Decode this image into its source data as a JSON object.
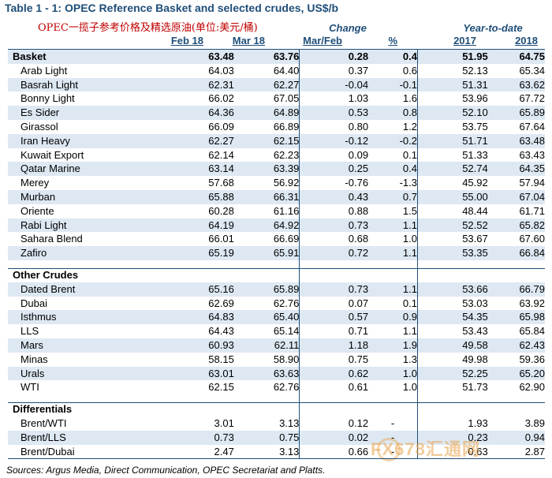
{
  "title": "Table 1 - 1: OPEC Reference Basket and selected crudes, US$/b",
  "subtitle": "OPEC一揽子参考价格及精选原油(单位:美元/桶)",
  "headers": {
    "change": "Change",
    "ytd": "Year-to-date",
    "feb": "Feb 18",
    "mar": "Mar 18",
    "marfeb": "Mar/Feb",
    "pct": "%",
    "y2017": "2017",
    "y2018": "2018"
  },
  "basket": {
    "label": "Basket",
    "values": [
      "63.48",
      "63.76",
      "0.28",
      "0.4",
      "51.95",
      "64.75"
    ]
  },
  "basket_rows": [
    {
      "name": "Arab Light",
      "values": [
        "64.03",
        "64.40",
        "0.37",
        "0.6",
        "52.13",
        "65.34"
      ]
    },
    {
      "name": "Basrah Light",
      "values": [
        "62.31",
        "62.27",
        "-0.04",
        "-0.1",
        "51.31",
        "63.62"
      ]
    },
    {
      "name": "Bonny Light",
      "values": [
        "66.02",
        "67.05",
        "1.03",
        "1.6",
        "53.96",
        "67.72"
      ]
    },
    {
      "name": "Es Sider",
      "values": [
        "64.36",
        "64.89",
        "0.53",
        "0.8",
        "52.10",
        "65.89"
      ]
    },
    {
      "name": "Girassol",
      "values": [
        "66.09",
        "66.89",
        "0.80",
        "1.2",
        "53.75",
        "67.64"
      ]
    },
    {
      "name": "Iran Heavy",
      "values": [
        "62.27",
        "62.15",
        "-0.12",
        "-0.2",
        "51.71",
        "63.48"
      ]
    },
    {
      "name": "Kuwait Export",
      "values": [
        "62.14",
        "62.23",
        "0.09",
        "0.1",
        "51.33",
        "63.43"
      ]
    },
    {
      "name": "Qatar Marine",
      "values": [
        "63.14",
        "63.39",
        "0.25",
        "0.4",
        "52.74",
        "64.35"
      ]
    },
    {
      "name": "Merey",
      "values": [
        "57.68",
        "56.92",
        "-0.76",
        "-1.3",
        "45.92",
        "57.94"
      ]
    },
    {
      "name": "Murban",
      "values": [
        "65.88",
        "66.31",
        "0.43",
        "0.7",
        "55.00",
        "67.04"
      ]
    },
    {
      "name": "Oriente",
      "values": [
        "60.28",
        "61.16",
        "0.88",
        "1.5",
        "48.44",
        "61.71"
      ]
    },
    {
      "name": "Rabi Light",
      "values": [
        "64.19",
        "64.92",
        "0.73",
        "1.1",
        "52.52",
        "65.82"
      ]
    },
    {
      "name": "Sahara Blend",
      "values": [
        "66.01",
        "66.69",
        "0.68",
        "1.0",
        "53.67",
        "67.60"
      ]
    },
    {
      "name": "Zafiro",
      "values": [
        "65.19",
        "65.91",
        "0.72",
        "1.1",
        "53.35",
        "66.84"
      ]
    }
  ],
  "other_label": "Other Crudes",
  "other_rows": [
    {
      "name": "Dated Brent",
      "values": [
        "65.16",
        "65.89",
        "0.73",
        "1.1",
        "53.66",
        "66.79"
      ]
    },
    {
      "name": "Dubai",
      "values": [
        "62.69",
        "62.76",
        "0.07",
        "0.1",
        "53.03",
        "63.92"
      ]
    },
    {
      "name": "Isthmus",
      "values": [
        "64.83",
        "65.40",
        "0.57",
        "0.9",
        "54.35",
        "65.98"
      ]
    },
    {
      "name": "LLS",
      "values": [
        "64.43",
        "65.14",
        "0.71",
        "1.1",
        "53.43",
        "65.84"
      ]
    },
    {
      "name": "Mars",
      "values": [
        "60.93",
        "62.11",
        "1.18",
        "1.9",
        "49.58",
        "62.43"
      ]
    },
    {
      "name": "Minas",
      "values": [
        "58.15",
        "58.90",
        "0.75",
        "1.3",
        "49.98",
        "59.36"
      ]
    },
    {
      "name": "Urals",
      "values": [
        "63.01",
        "63.63",
        "0.62",
        "1.0",
        "52.25",
        "65.20"
      ]
    },
    {
      "name": "WTI",
      "values": [
        "62.15",
        "62.76",
        "0.61",
        "1.0",
        "51.73",
        "62.90"
      ]
    }
  ],
  "diff_label": "Differentials",
  "diff_rows": [
    {
      "name": "Brent/WTI",
      "values": [
        "3.01",
        "3.13",
        "0.12",
        "-",
        "1.93",
        "3.89"
      ]
    },
    {
      "name": "Brent/LLS",
      "values": [
        "0.73",
        "0.75",
        "0.02",
        "-",
        "0.23",
        "0.94"
      ]
    },
    {
      "name": "Brent/Dubai",
      "values": [
        "2.47",
        "3.13",
        "0.66",
        "-",
        "0.63",
        "2.87"
      ]
    }
  ],
  "source": "Sources: Argus Media, Direct Communication, OPEC Secretariat and Platts.",
  "watermark": "FX678汇通网",
  "colors": {
    "header_blue": "#1f4e79",
    "subtitle_red": "#c00000",
    "row_shade": "#dde8f2"
  }
}
